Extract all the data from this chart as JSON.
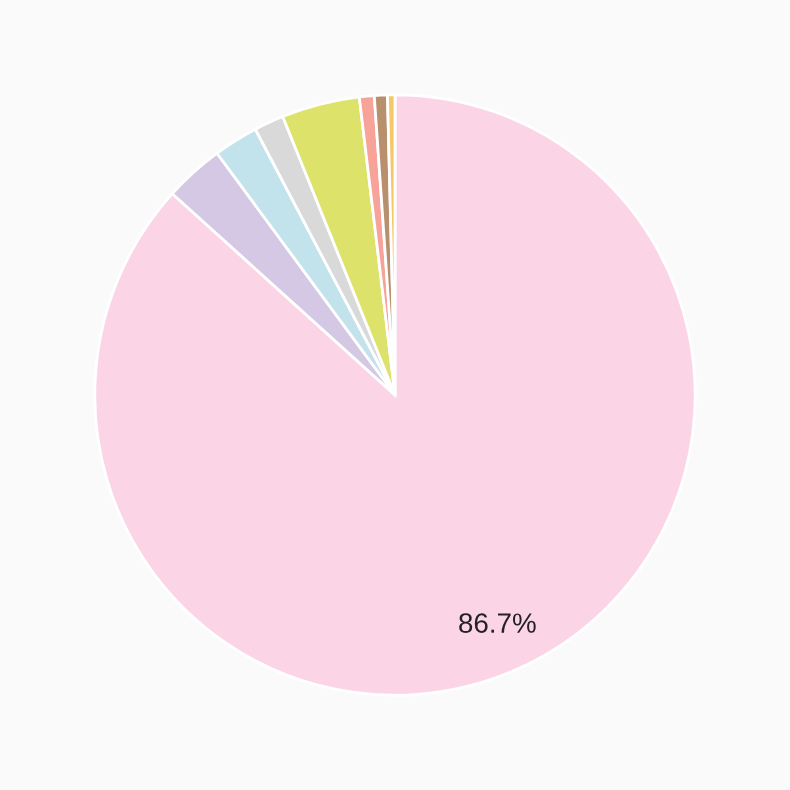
{
  "chart_data": {
    "type": "pie",
    "categories": [
      null,
      null,
      null,
      null,
      null,
      null,
      null,
      null
    ],
    "values": [
      86.7,
      3.2,
      2.4,
      1.6,
      4.2,
      0.8,
      0.7,
      0.4
    ],
    "colors": [
      "#fbd5e6",
      "#d4c8e4",
      "#c2e3ec",
      "#d9d9d9",
      "#dde36a",
      "#f7a399",
      "#b8906e",
      "#f5c86a"
    ],
    "value_labels": [
      "86.7%",
      null,
      null,
      null,
      null,
      null,
      null,
      null
    ]
  }
}
